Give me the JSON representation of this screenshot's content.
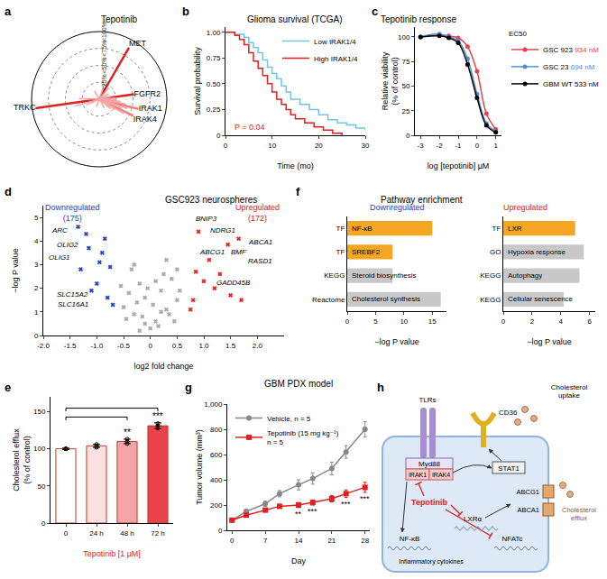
{
  "chart_data": [
    {
      "panel_label": "a",
      "type": "polar",
      "title": "Tepotinib",
      "rlim": [
        0,
        100
      ],
      "rticks": [
        {
          "value": 25,
          "label": "<25%"
        },
        {
          "value": 50,
          "label": "<50%"
        },
        {
          "value": 75,
          "label": "<75%"
        },
        {
          "value": 100,
          "label": "<100%"
        }
      ],
      "grid": true,
      "spokes": [
        {
          "label": "MET",
          "angle": 60,
          "value": 88,
          "color": "#e02020"
        },
        {
          "label": "FGFR2",
          "angle": 8,
          "value": 52,
          "color": "#e02020"
        },
        {
          "label": "IRAK1",
          "angle": -14,
          "value": 60,
          "color": "#f07a7a"
        },
        {
          "label": "IRAK4",
          "angle": -26,
          "value": 56,
          "color": "#f07a7a"
        },
        {
          "label": "TRKC",
          "angle": 188,
          "value": 95,
          "color": "#e02020"
        },
        {
          "label": null,
          "angle": -6,
          "value": 32,
          "color": "#f4a6a6"
        },
        {
          "label": null,
          "angle": -10,
          "value": 40,
          "color": "#f4a6a6"
        },
        {
          "label": null,
          "angle": -18,
          "value": 44,
          "color": "#f4a6a6"
        },
        {
          "label": null,
          "angle": -22,
          "value": 36,
          "color": "#f4a6a6"
        },
        {
          "label": null,
          "angle": -30,
          "value": 42,
          "color": "#f4a6a6"
        },
        {
          "label": null,
          "angle": -34,
          "value": 28,
          "color": "#f4a6a6"
        },
        {
          "label": null,
          "angle": -40,
          "value": 22,
          "color": "#f4a6a6"
        },
        {
          "label": null,
          "angle": -2,
          "value": 24,
          "color": "#f4a6a6"
        },
        {
          "label": null,
          "angle": 4,
          "value": 26,
          "color": "#f4a6a6"
        },
        {
          "label": null,
          "angle": 14,
          "value": 18,
          "color": "#f4a6a6"
        },
        {
          "label": null,
          "angle": 30,
          "value": 16,
          "color": "#f4a6a6"
        },
        {
          "label": null,
          "angle": 72,
          "value": 26,
          "color": "#f4a6a6"
        },
        {
          "label": null,
          "angle": 50,
          "value": 22,
          "color": "#f4a6a6"
        },
        {
          "label": null,
          "angle": 178,
          "value": 30,
          "color": "#f4a6a6"
        },
        {
          "label": null,
          "angle": 196,
          "value": 38,
          "color": "#f4a6a6"
        },
        {
          "label": null,
          "angle": 205,
          "value": 20,
          "color": "#f4a6a6"
        },
        {
          "label": null,
          "angle": -60,
          "value": 15,
          "color": "#f4a6a6"
        },
        {
          "label": null,
          "angle": 120,
          "value": 14,
          "color": "#f4a6a6"
        },
        {
          "label": null,
          "angle": 250,
          "value": 12,
          "color": "#f4a6a6"
        }
      ]
    },
    {
      "panel_label": "b",
      "type": "line",
      "title": "Glioma survival (TCGA)",
      "xlabel": "Time (mo)",
      "ylabel": "Survival probability",
      "xlim": [
        0,
        30
      ],
      "xticks": [
        0,
        10,
        20,
        30
      ],
      "ylim": [
        0,
        1.05
      ],
      "yticks": [
        0,
        0.25,
        {
          "value": 0.5,
          "label": "0.50"
        },
        0.75,
        {
          "value": 1,
          "label": "1.00"
        }
      ],
      "legend": "upper right",
      "grid": false,
      "series": [
        {
          "name": "Low IRAK1/4",
          "color": "#6ec6e8",
          "x": [
            0,
            2,
            4,
            5,
            6,
            7,
            8,
            9,
            10,
            11,
            12,
            13,
            14,
            16,
            18,
            20,
            22,
            24,
            26,
            28,
            30
          ],
          "values": [
            1,
            0.98,
            0.95,
            0.9,
            0.85,
            0.8,
            0.73,
            0.66,
            0.6,
            0.55,
            0.48,
            0.42,
            0.35,
            0.3,
            0.25,
            0.2,
            0.15,
            0.12,
            0.1,
            0.07,
            0.05
          ]
        },
        {
          "name": "High IRAK1/4",
          "color": "#e02020",
          "x": [
            0,
            2,
            3,
            4,
            5,
            6,
            7,
            8,
            9,
            10,
            11,
            12,
            13,
            14,
            15,
            17,
            19,
            21,
            23,
            25
          ],
          "values": [
            1,
            0.97,
            0.93,
            0.88,
            0.8,
            0.72,
            0.65,
            0.58,
            0.5,
            0.42,
            0.35,
            0.3,
            0.25,
            0.2,
            0.16,
            0.12,
            0.08,
            0.05,
            0.02,
            0
          ]
        }
      ],
      "annotations": [
        {
          "text": "P = 0.04",
          "x": 1.5,
          "y": 0.08,
          "color": "#e02020"
        }
      ]
    },
    {
      "panel_label": "c",
      "type": "line",
      "title": "Tepotinib response",
      "xlabel": "log [tepotinib] µM",
      "ylabel": "Relative viability (% of control)",
      "xlim": [
        -3.3,
        1.3
      ],
      "xticks": [
        -3,
        -2,
        -1,
        0,
        1
      ],
      "ylim": [
        0,
        110
      ],
      "yticks": [
        0,
        25,
        50,
        75,
        100
      ],
      "legend": "right",
      "legend_title": "EC50",
      "marker": "circle",
      "grid": false,
      "x": [
        -3,
        -2,
        -1.5,
        -1,
        -0.5,
        0,
        0.5,
        1
      ],
      "series": [
        {
          "name": "GSC 923",
          "ec50": "934 nM",
          "color": "#e8434a",
          "values": [
            100,
            102,
            101,
            99,
            90,
            65,
            22,
            6
          ]
        },
        {
          "name": "GSC 23",
          "ec50": "694 nM",
          "color": "#4a90d9",
          "values": [
            100,
            103,
            100,
            96,
            78,
            42,
            12,
            4
          ]
        },
        {
          "name": "GBM WT",
          "ec50": "533 nM",
          "color": "#000000",
          "values": [
            100,
            101,
            99,
            94,
            72,
            38,
            10,
            3
          ]
        }
      ]
    },
    {
      "panel_label": "d",
      "type": "scatter",
      "title": "GSC923 neurospheres",
      "xlabel": "log2 fold change",
      "ylabel": "−log P value",
      "marker": "x",
      "grid": false,
      "xlim": [
        -2,
        2.5
      ],
      "xticks": [
        {
          "value": -2,
          "label": "-2.0"
        },
        {
          "value": -1.5,
          "label": "-1.5"
        },
        {
          "value": -1,
          "label": "-1.0"
        },
        {
          "value": -0.5,
          "label": "-0.5"
        },
        0,
        0.5,
        {
          "value": 1,
          "label": "1.0"
        },
        1.5,
        {
          "value": 2,
          "label": "2.0"
        }
      ],
      "ylim": [
        0,
        5.5
      ],
      "yticks": [
        0,
        1,
        2,
        3,
        4,
        5
      ],
      "series": [
        {
          "color": "#a6a6a6",
          "x": [
            -0.55,
            -0.45,
            -0.4,
            -0.35,
            -0.3,
            -0.25,
            -0.2,
            -0.15,
            -0.1,
            -0.05,
            0,
            0.05,
            0.1,
            0.15,
            0.2,
            0.25,
            0.3,
            0.35,
            0.4,
            0.45,
            0.5,
            0.55,
            -0.5,
            0.5,
            -0.3,
            0.3,
            -0.2,
            0.2,
            -0.1,
            0.1
          ],
          "values": [
            2.1,
            0.7,
            1.8,
            2.8,
            0.9,
            1.4,
            2.2,
            0.8,
            0.5,
            2.0,
            0.3,
            1.3,
            0.6,
            0.4,
            1.9,
            2.6,
            1.1,
            0.9,
            2.4,
            0.6,
            1.5,
            1.9,
            1.2,
            2.8,
            3.0,
            3.2,
            0.2,
            1.0,
            1.6,
            2.3
          ]
        },
        {
          "color": "#2040c0",
          "x": [
            -1.35,
            -1.3,
            -1.2,
            -1.0,
            -0.9,
            -0.8,
            -0.75,
            -0.7,
            -1.1,
            -0.85,
            -0.95,
            -1.15
          ],
          "values": [
            4.6,
            2.8,
            4.3,
            2.2,
            3.5,
            1.6,
            2.9,
            1.3,
            1.9,
            4.1,
            3.1,
            3.7
          ]
        },
        {
          "color": "#e02020",
          "x": [
            0.8,
            0.9,
            1.0,
            1.1,
            1.2,
            1.45,
            1.65,
            0.75,
            0.85,
            1.3,
            1.5,
            1.7
          ],
          "values": [
            1.5,
            4.4,
            2.3,
            3.2,
            2.0,
            3.85,
            4.1,
            1.1,
            2.7,
            2.6,
            1.7,
            1.5
          ]
        }
      ],
      "group_labels": [
        {
          "text": "Downregulated (175)",
          "x": -1.45,
          "y": 5.2,
          "color": "#2040c0"
        },
        {
          "text": "Upregulated (172)",
          "x": 2.0,
          "y": 5.2,
          "color": "#e02020"
        }
      ],
      "gene_labels": [
        {
          "text": "ARC",
          "x": -1.7,
          "y": 4.45
        },
        {
          "text": "OLIG2",
          "x": -1.55,
          "y": 3.85
        },
        {
          "text": "OLIG1",
          "x": -1.7,
          "y": 3.3
        },
        {
          "text": "SLC15A2",
          "x": -1.45,
          "y": 1.75
        },
        {
          "text": "SLC16A1",
          "x": -1.45,
          "y": 1.3
        },
        {
          "text": "BNIP3",
          "x": 1.05,
          "y": 4.95
        },
        {
          "text": "NDRG1",
          "x": 1.35,
          "y": 4.45
        },
        {
          "text": "ABCA1",
          "x": 2.05,
          "y": 3.95
        },
        {
          "text": "ABCG1",
          "x": 1.15,
          "y": 3.55
        },
        {
          "text": "BMF",
          "x": 1.65,
          "y": 3.55
        },
        {
          "text": "RASD1",
          "x": 2.05,
          "y": 3.15
        },
        {
          "text": "GADD45B",
          "x": 1.55,
          "y": 2.25
        }
      ]
    },
    {
      "panel_label": "e",
      "type": "bar",
      "xlabel": "Tepotinib [1 µM]",
      "ylabel": "Cholesterol efflux (% of control)",
      "grid": false,
      "categories": [
        "0",
        "24 h",
        "48 h",
        "72 h"
      ],
      "values": [
        100,
        104,
        110,
        131
      ],
      "errors": [
        1,
        2,
        3,
        4
      ],
      "points": [
        [
          100,
          100,
          100
        ],
        [
          102,
          104,
          106
        ],
        [
          107,
          110,
          113
        ],
        [
          128,
          131,
          134
        ]
      ],
      "marker": "circle-open",
      "colors": [
        "#ffffff",
        "#fbe0e0",
        "#f3a5a5",
        "#e8434a"
      ],
      "ylim": [
        0,
        170
      ],
      "yticks": [
        0,
        50,
        100,
        150
      ],
      "significance": [
        {
          "from": 0,
          "to": 2,
          "label": "**"
        },
        {
          "from": 0,
          "to": 3,
          "label": "***"
        }
      ]
    },
    {
      "panel_label": "f",
      "type": "bar",
      "title": "Pathway enrichment",
      "orientation": "horizontal",
      "grid": false,
      "charts": [
        {
          "title": "Downregulated",
          "color": "#2040c0",
          "xlabel": "−log P value",
          "categories": [
            "TF",
            "TF",
            "KEGG",
            "Reactome"
          ],
          "bar_labels": [
            "NF-κB",
            "SREBF2",
            "Steroid biosynthesis",
            "Cholesterol synthesis"
          ],
          "values": [
            15,
            8,
            8,
            16.5
          ],
          "colors": [
            "#f5a623",
            "#f5a623",
            "#c8c8c8",
            "#c8c8c8"
          ],
          "xlim": [
            0,
            17.5
          ],
          "xticks": [
            0,
            5,
            10,
            15
          ]
        },
        {
          "title": "Upregulated",
          "color": "#e02020",
          "xlabel": "−log P value",
          "categories": [
            "TF",
            "GO",
            "KEGG",
            "KEGG"
          ],
          "bar_labels": [
            "LXR",
            "Hypoxia response",
            "Autophagy",
            "Cellular senescence"
          ],
          "values": [
            5,
            5.6,
            5.3,
            4.2
          ],
          "colors": [
            "#f5a623",
            "#c8c8c8",
            "#c8c8c8",
            "#c8c8c8"
          ],
          "xlim": [
            0,
            6.4
          ],
          "xticks": [
            0,
            2,
            4,
            6
          ]
        }
      ]
    },
    {
      "panel_label": "g",
      "type": "line",
      "title": "GBM PDX model",
      "xlabel": "Day",
      "ylabel": "Tumor volume (mm³)",
      "grid": false,
      "xlim": [
        -1,
        29
      ],
      "xticks": [
        0,
        7,
        14,
        21,
        28
      ],
      "ylim": [
        0,
        1000
      ],
      "yticks": [
        0,
        200,
        400,
        600,
        800,
        {
          "value": 1000,
          "label": "1,000"
        }
      ],
      "legend": "upper left",
      "x": [
        0,
        3,
        7,
        10,
        14,
        17,
        21,
        24,
        28
      ],
      "series": [
        {
          "name": "Vehicle, n = 5",
          "color": "#888888",
          "marker": "circle",
          "values": [
            80,
            150,
            210,
            290,
            360,
            410,
            490,
            620,
            800
          ],
          "errors": [
            10,
            15,
            20,
            25,
            40,
            45,
            50,
            50,
            60
          ]
        },
        {
          "name": "Tepotinib (15 mg kg⁻¹) n = 5",
          "color": "#e02020",
          "marker": "square",
          "values": [
            80,
            120,
            160,
            190,
            200,
            220,
            250,
            290,
            340
          ],
          "errors": [
            10,
            10,
            15,
            15,
            20,
            20,
            25,
            30,
            40
          ]
        }
      ],
      "significance": [
        {
          "x": 14,
          "label": "**"
        },
        {
          "x": 17,
          "label": "***"
        },
        {
          "x": 24,
          "label": "***"
        },
        {
          "x": 28,
          "label": "***"
        }
      ]
    }
  ],
  "diagram": {
    "panel_label": "h",
    "labels": {
      "tlrs": "TLRs",
      "cd36": "CD36",
      "uptake": "Cholesterol uptake",
      "myd88": "Myd88",
      "irak1": "IRAK1",
      "irak4": "IRAK4",
      "stat1": "STAT1",
      "drug": "Tepotinib",
      "nfkb": "NF-κB",
      "lxr": "LXRα",
      "nfat": "NFATc",
      "cytokines": "Inflammatory cytokines",
      "abcg1": "ABCG1",
      "abca1": "ABCA1",
      "efflux": "Cholesterol efflux"
    }
  }
}
